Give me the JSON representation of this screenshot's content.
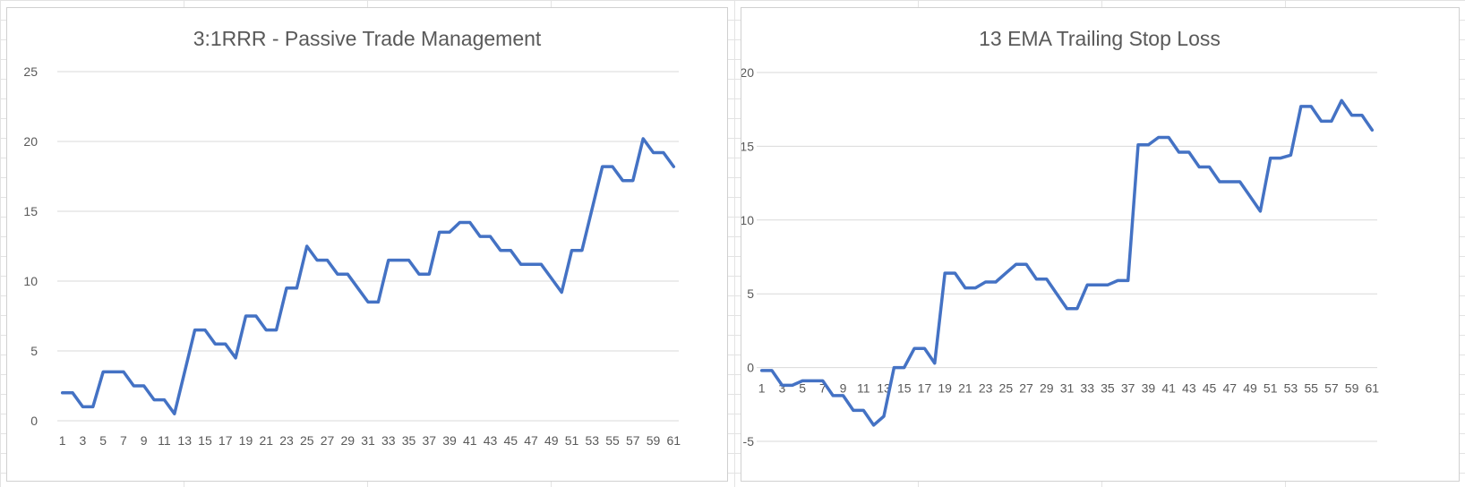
{
  "chart_data": [
    {
      "type": "line",
      "title": "3:1RRR - Passive Trade Management",
      "xlabel": "",
      "ylabel": "",
      "x": [
        1,
        2,
        3,
        4,
        5,
        6,
        7,
        8,
        9,
        10,
        11,
        12,
        13,
        14,
        15,
        16,
        17,
        18,
        19,
        20,
        21,
        22,
        23,
        24,
        25,
        26,
        27,
        28,
        29,
        30,
        31,
        32,
        33,
        34,
        35,
        36,
        37,
        38,
        39,
        40,
        41,
        42,
        43,
        44,
        45,
        46,
        47,
        48,
        49,
        50,
        51,
        52,
        53,
        54,
        55,
        56,
        57,
        58,
        59,
        60,
        61
      ],
      "x_tick_labels": [
        "1",
        "3",
        "5",
        "7",
        "9",
        "11",
        "13",
        "15",
        "17",
        "19",
        "21",
        "23",
        "25",
        "27",
        "29",
        "31",
        "33",
        "35",
        "37",
        "39",
        "41",
        "43",
        "45",
        "47",
        "49",
        "51",
        "53",
        "55",
        "57",
        "59",
        "61"
      ],
      "y_tick_labels": [
        "0",
        "5",
        "10",
        "15",
        "20",
        "25"
      ],
      "ylim": [
        0,
        25
      ],
      "y_ticks": [
        0,
        5,
        10,
        15,
        20,
        25
      ],
      "grid": true,
      "series": [
        {
          "color": "#4472c4",
          "values": [
            2,
            2,
            1,
            1,
            3.5,
            3.5,
            3.5,
            2.5,
            2.5,
            1.5,
            1.5,
            0.5,
            3.5,
            6.5,
            6.5,
            5.5,
            5.5,
            4.5,
            7.5,
            7.5,
            6.5,
            6.5,
            9.5,
            9.5,
            12.5,
            11.5,
            11.5,
            10.5,
            10.5,
            9.5,
            8.5,
            8.5,
            11.5,
            11.5,
            11.5,
            10.5,
            10.5,
            13.5,
            13.5,
            14.2,
            14.2,
            13.2,
            13.2,
            12.2,
            12.2,
            11.2,
            11.2,
            11.2,
            10.2,
            9.2,
            12.2,
            12.2,
            15.2,
            18.2,
            18.2,
            17.2,
            17.2,
            20.2,
            19.2,
            19.2,
            18.2
          ]
        }
      ]
    },
    {
      "type": "line",
      "title": "13 EMA Trailing Stop Loss",
      "xlabel": "",
      "ylabel": "",
      "x": [
        1,
        2,
        3,
        4,
        5,
        6,
        7,
        8,
        9,
        10,
        11,
        12,
        13,
        14,
        15,
        16,
        17,
        18,
        19,
        20,
        21,
        22,
        23,
        24,
        25,
        26,
        27,
        28,
        29,
        30,
        31,
        32,
        33,
        34,
        35,
        36,
        37,
        38,
        39,
        40,
        41,
        42,
        43,
        44,
        45,
        46,
        47,
        48,
        49,
        50,
        51,
        52,
        53,
        54,
        55,
        56,
        57,
        58,
        59,
        60,
        61
      ],
      "x_tick_labels": [
        "1",
        "3",
        "5",
        "7",
        "9",
        "11",
        "13",
        "15",
        "17",
        "19",
        "21",
        "23",
        "25",
        "27",
        "29",
        "31",
        "33",
        "35",
        "37",
        "39",
        "41",
        "43",
        "45",
        "47",
        "49",
        "51",
        "53",
        "55",
        "57",
        "59",
        "61"
      ],
      "y_tick_labels": [
        "-5",
        "0",
        "5",
        "10",
        "15",
        "20"
      ],
      "ylim": [
        -5,
        20
      ],
      "y_ticks": [
        -5,
        0,
        5,
        10,
        15,
        20
      ],
      "grid": true,
      "series": [
        {
          "color": "#4472c4",
          "values": [
            -0.2,
            -0.2,
            -1.2,
            -1.2,
            -0.9,
            -0.9,
            -0.9,
            -1.9,
            -1.9,
            -2.9,
            -2.9,
            -3.9,
            -3.3,
            0,
            0,
            1.3,
            1.3,
            0.3,
            6.4,
            6.4,
            5.4,
            5.4,
            5.8,
            5.8,
            6.4,
            7,
            7,
            6,
            6,
            5,
            4,
            4,
            5.6,
            5.6,
            5.6,
            5.9,
            5.9,
            15.1,
            15.1,
            15.6,
            15.6,
            14.6,
            14.6,
            13.6,
            13.6,
            12.6,
            12.6,
            12.6,
            11.6,
            10.6,
            14.2,
            14.2,
            14.4,
            17.7,
            17.7,
            16.7,
            16.7,
            18.1,
            17.1,
            17.1,
            16.1
          ]
        }
      ]
    }
  ]
}
